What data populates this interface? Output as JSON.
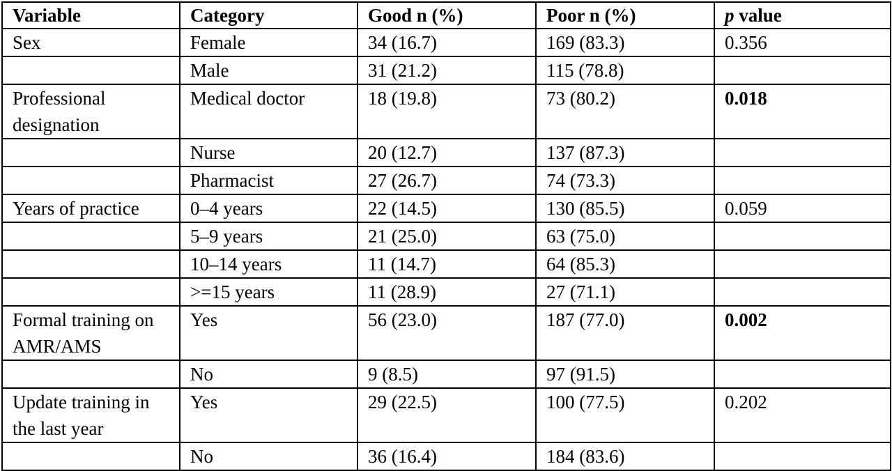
{
  "headers": {
    "variable": "Variable",
    "category": "Category",
    "good": "Good n (%)",
    "poor": "Poor n (%)",
    "p_italic": "p",
    "p_rest": " value"
  },
  "rows": [
    {
      "variable": "Sex",
      "category": "Female",
      "good": "34 (16.7)",
      "poor": "169 (83.3)",
      "p": "0.356"
    },
    {
      "variable": "",
      "category": "Male",
      "good": "31 (21.2)",
      "poor": "115 (78.8)",
      "p": ""
    },
    {
      "variable": "Professional designation",
      "category": "Medical doctor",
      "good": "18 (19.8)",
      "poor": "73 (80.2)",
      "p": "0.018"
    },
    {
      "variable": "",
      "category": "Nurse",
      "good": "20 (12.7)",
      "poor": "137 (87.3)",
      "p": ""
    },
    {
      "variable": "",
      "category": "Pharmacist",
      "good": "27 (26.7)",
      "poor": "74 (73.3)",
      "p": ""
    },
    {
      "variable": "Years of practice",
      "category": "0–4 years",
      "good": "22 (14.5)",
      "poor": "130 (85.5)",
      "p": "0.059"
    },
    {
      "variable": "",
      "category": "5–9 years",
      "good": "21 (25.0)",
      "poor": "63 (75.0)",
      "p": ""
    },
    {
      "variable": "",
      "category": "10–14 years",
      "good": "11 (14.7)",
      "poor": "64 (85.3)",
      "p": ""
    },
    {
      "variable": "",
      "category": ">=15 years",
      "good": "11 (28.9)",
      "poor": "27 (71.1)",
      "p": ""
    },
    {
      "variable": "Formal training on AMR/AMS",
      "category": "Yes",
      "good": "56 (23.0)",
      "poor": "187 (77.0)",
      "p": "0.002"
    },
    {
      "variable": "",
      "category": "No",
      "good": "9 (8.5)",
      "poor": "97 (91.5)",
      "p": ""
    },
    {
      "variable": "Update training in the last year",
      "category": "Yes",
      "good": "29 (22.5)",
      "poor": "100 (77.5)",
      "p": "0.202"
    },
    {
      "variable": "",
      "category": "No",
      "good": "36 (16.4)",
      "poor": "184 (83.6)",
      "p": ""
    }
  ]
}
